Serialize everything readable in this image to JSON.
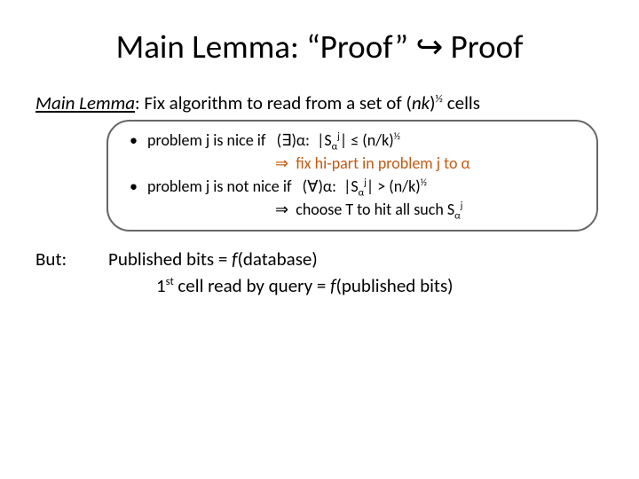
{
  "title": "Main Lemma: “Proof” ↪ Proof",
  "lemma": {
    "label": "Main Lemma",
    "text_before": ": Fix algorithm to read from a set of (",
    "nk": "nk",
    "text_after": ")",
    "exp": "½",
    "cells": " cells"
  },
  "box": {
    "bullet1": {
      "pre": "problem j is nice if   (",
      "exists": "∃",
      "post1": ")α:  |S",
      "alpha": "α",
      "jsup": "j",
      "post2": "| ≤ (n/k)",
      "half": "½"
    },
    "arrow1": {
      "text": "⇒  fix hi-part in problem j to α"
    },
    "bullet2": {
      "pre": "problem j is not nice if   (",
      "forall": "∀",
      "post1": ")α:  |S",
      "alpha": "α",
      "jsup": "j",
      "post2": "| > (n/k)",
      "half": "½"
    },
    "arrow2": {
      "text": "⇒  choose T to hit all such S",
      "alpha": "α",
      "jsup": "j"
    }
  },
  "but": {
    "label": "But:",
    "line1": {
      "pre": "Published bits = ",
      "f": "f",
      "post": "(database)"
    },
    "line2": {
      "pre": "1",
      "st": "st",
      "mid": " cell read by query = ",
      "f": "f",
      "post": "(published bits)"
    }
  },
  "style": {
    "title_fontsize": 37,
    "body_fontsize": 21,
    "box_fontsize": 18,
    "text_color": "#000000",
    "accent_color": "#c55911",
    "box_border": "#666666",
    "box_radius": 26,
    "background": "#ffffff"
  }
}
